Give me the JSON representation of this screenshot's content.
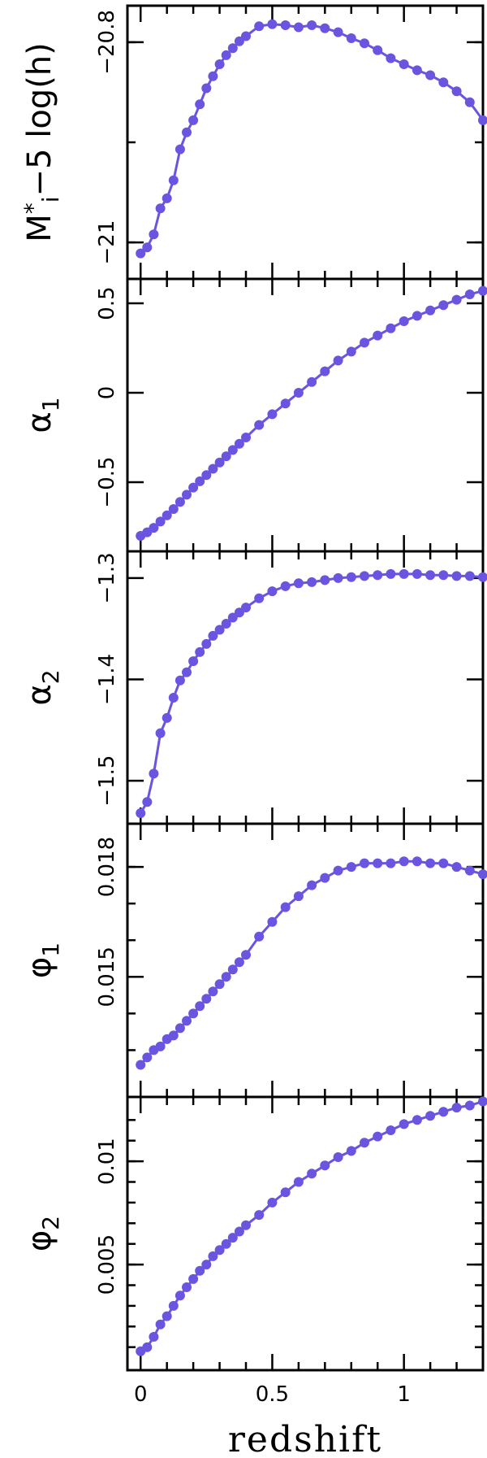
{
  "chart_data": {
    "type": "line",
    "xlabel": "redshift",
    "xlim": [
      -0.05,
      1.3
    ],
    "x_ticks": [
      0,
      0.5,
      1
    ],
    "x_tick_labels": [
      "0",
      "0.5",
      "1"
    ],
    "line_color": "#6a55e0",
    "x": [
      0.0,
      0.025,
      0.05,
      0.075,
      0.1,
      0.125,
      0.15,
      0.175,
      0.2,
      0.225,
      0.25,
      0.275,
      0.3,
      0.325,
      0.35,
      0.375,
      0.4,
      0.45,
      0.5,
      0.55,
      0.6,
      0.65,
      0.7,
      0.75,
      0.8,
      0.85,
      0.9,
      0.95,
      1.0,
      1.05,
      1.1,
      1.15,
      1.2,
      1.25,
      1.3
    ],
    "panels": [
      {
        "ylabel": "M",
        "ylabel_sup": "*",
        "ylabel_sub": "i",
        "ylabel_rest": "−5 log(h)",
        "ylim": [
          -21.03,
          -20.77
        ],
        "y_ticks": [
          -21,
          -20.8
        ],
        "y_tick_labels": [
          "−21",
          "−20.8"
        ],
        "y_minor_ticks": [
          -21.0,
          -20.9,
          -20.8
        ],
        "y": [
          -21.011,
          -21.005,
          -20.992,
          -20.966,
          -20.956,
          -20.938,
          -20.907,
          -20.89,
          -20.878,
          -20.862,
          -20.846,
          -20.834,
          -20.822,
          -20.813,
          -20.806,
          -20.799,
          -20.794,
          -20.784,
          -20.782,
          -20.783,
          -20.785,
          -20.783,
          -20.786,
          -20.79,
          -20.796,
          -20.801,
          -20.808,
          -20.816,
          -20.822,
          -20.828,
          -20.833,
          -20.84,
          -20.849,
          -20.86,
          -20.878
        ]
      },
      {
        "ylabel": "α",
        "ylabel_sub": "1",
        "ylim": [
          -0.85,
          0.6
        ],
        "y_ticks": [
          -0.5,
          0,
          0.5
        ],
        "y_tick_labels": [
          "−0.5",
          "0",
          "0.5"
        ],
        "y": [
          -0.8,
          -0.78,
          -0.755,
          -0.72,
          -0.685,
          -0.65,
          -0.61,
          -0.57,
          -0.53,
          -0.495,
          -0.46,
          -0.425,
          -0.39,
          -0.355,
          -0.32,
          -0.285,
          -0.25,
          -0.18,
          -0.12,
          -0.06,
          0.0,
          0.06,
          0.12,
          0.18,
          0.23,
          0.28,
          0.32,
          0.36,
          0.4,
          0.43,
          0.46,
          0.49,
          0.52,
          0.55,
          0.57
        ]
      },
      {
        "ylabel": "α",
        "ylabel_sub": "2",
        "ylim": [
          -1.536,
          -1.28
        ],
        "y_ticks": [
          -1.5,
          -1.4,
          -1.3
        ],
        "y_tick_labels": [
          "−1.5",
          "−1.4",
          "−1.3"
        ],
        "y": [
          -1.532,
          -1.521,
          -1.493,
          -1.453,
          -1.438,
          -1.418,
          -1.401,
          -1.393,
          -1.382,
          -1.373,
          -1.365,
          -1.357,
          -1.351,
          -1.345,
          -1.339,
          -1.334,
          -1.329,
          -1.32,
          -1.313,
          -1.308,
          -1.305,
          -1.304,
          -1.302,
          -1.3,
          -1.299,
          -1.298,
          -1.297,
          -1.296,
          -1.296,
          -1.296,
          -1.297,
          -1.297,
          -1.298,
          -1.298,
          -1.299
        ]
      },
      {
        "ylabel": "φ",
        "ylabel_sub": "1",
        "ylim": [
          0.0119,
          0.019
        ],
        "y_ticks": [
          0.015,
          0.018
        ],
        "y_tick_labels": [
          "0.015",
          "0.018"
        ],
        "y_minor_ticks": [
          0.013,
          0.014,
          0.015,
          0.016,
          0.017,
          0.018
        ],
        "y": [
          0.0126,
          0.0128,
          0.013,
          0.0131,
          0.0133,
          0.0134,
          0.0136,
          0.0138,
          0.014,
          0.0142,
          0.0144,
          0.0146,
          0.0148,
          0.015,
          0.0152,
          0.0154,
          0.0156,
          0.0161,
          0.0165,
          0.0169,
          0.0172,
          0.0175,
          0.0177,
          0.0179,
          0.018,
          0.0181,
          0.0181,
          0.0181,
          0.01815,
          0.01815,
          0.0181,
          0.0181,
          0.018,
          0.0179,
          0.0178
        ]
      },
      {
        "ylabel": "φ",
        "ylabel_sub": "2",
        "ylim": [
          0.0002,
          0.0128
        ],
        "y_ticks": [
          0.005,
          0.01
        ],
        "y_tick_labels": [
          "0.005",
          "0.01"
        ],
        "y_minor_ticks": [
          0.001,
          0.002,
          0.003,
          0.004,
          0.005,
          0.006,
          0.007,
          0.008,
          0.009,
          0.01,
          0.011,
          0.012
        ],
        "y": [
          0.0008,
          0.001,
          0.0015,
          0.0021,
          0.0025,
          0.003,
          0.0035,
          0.0039,
          0.0043,
          0.0047,
          0.005,
          0.0054,
          0.0057,
          0.006,
          0.0063,
          0.0066,
          0.0069,
          0.0074,
          0.008,
          0.0085,
          0.009,
          0.0094,
          0.0098,
          0.0102,
          0.0105,
          0.0109,
          0.0112,
          0.0115,
          0.0118,
          0.012,
          0.0122,
          0.0124,
          0.0126,
          0.0127,
          0.0129
        ]
      }
    ]
  }
}
